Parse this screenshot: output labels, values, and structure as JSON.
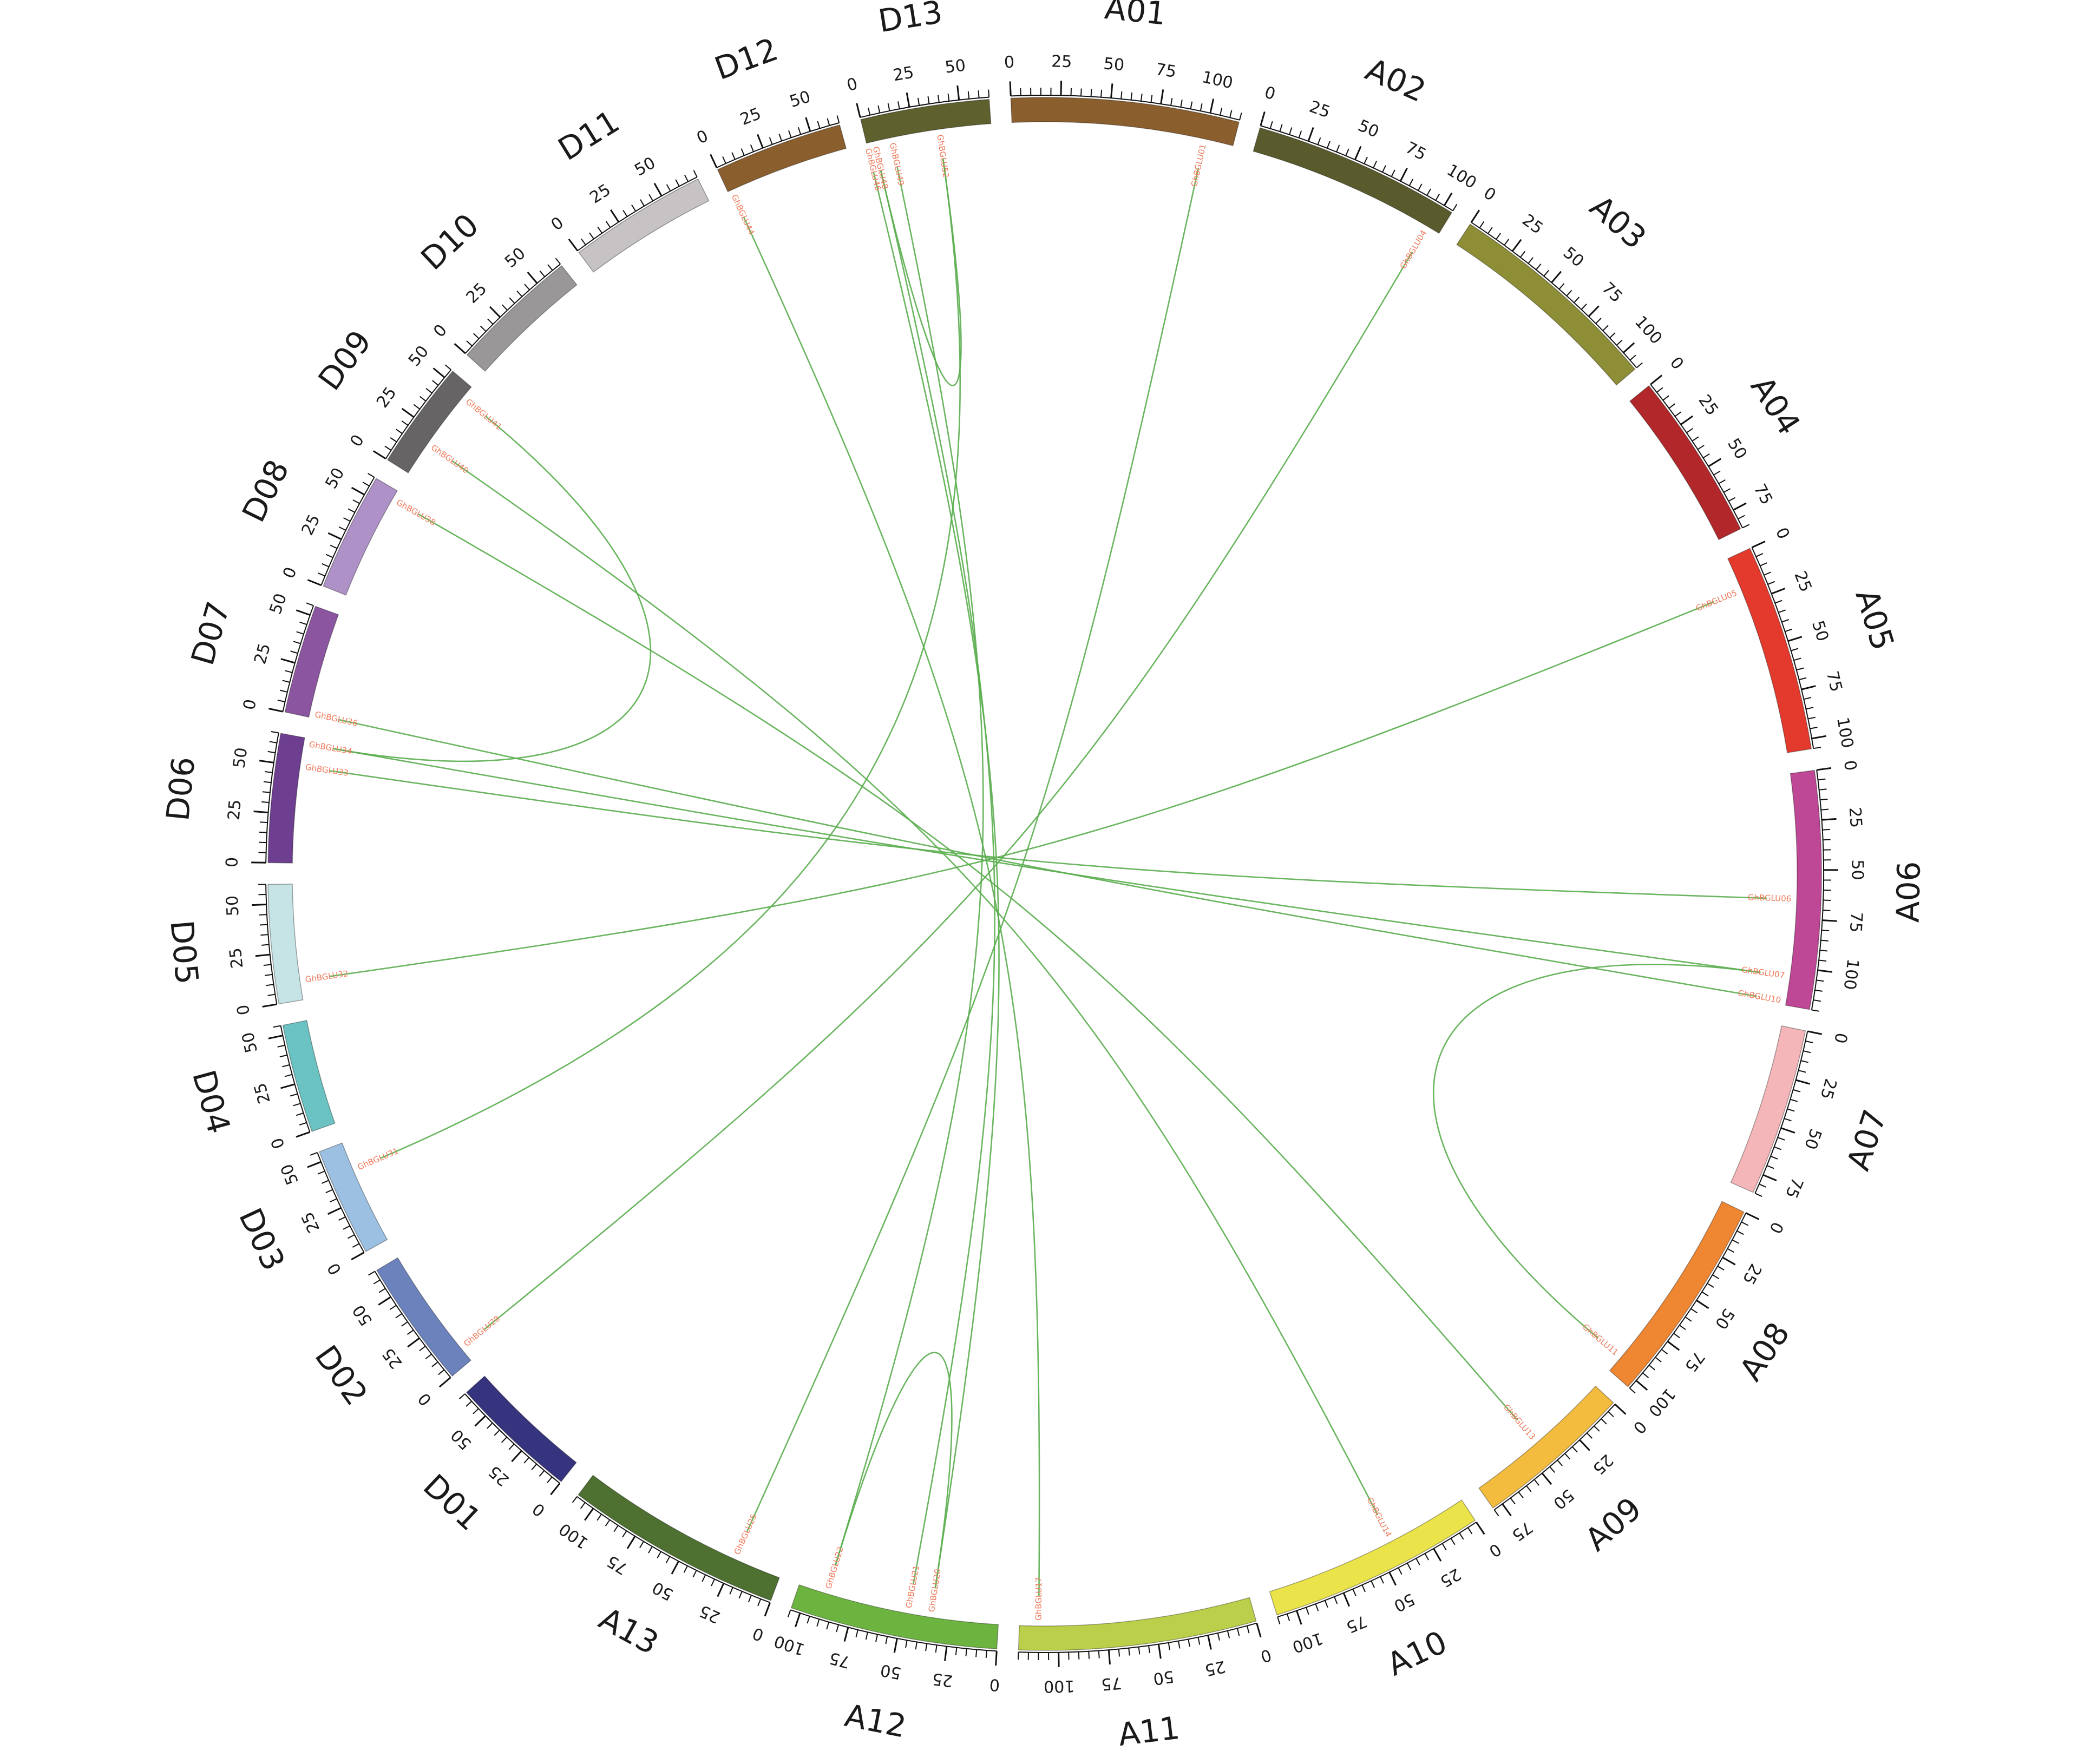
{
  "chromosomes": [
    {
      "name": "A01",
      "size": 115,
      "color": "#8b5e2e"
    },
    {
      "name": "A02",
      "size": 105,
      "color": "#5a5b2c"
    },
    {
      "name": "A03",
      "size": 110,
      "color": "#8e8e36"
    },
    {
      "name": "A04",
      "size": 85,
      "color": "#b2282a"
    },
    {
      "name": "A05",
      "size": 105,
      "color": "#e33a2d"
    },
    {
      "name": "A06",
      "size": 120,
      "color": "#be4896"
    },
    {
      "name": "A07",
      "size": 85,
      "color": "#f5b6b9"
    },
    {
      "name": "A08",
      "size": 105,
      "color": "#ee8632"
    },
    {
      "name": "A09",
      "size": 80,
      "color": "#f3bc3f"
    },
    {
      "name": "A10",
      "size": 110,
      "color": "#ebe34a"
    },
    {
      "name": "A11",
      "size": 120,
      "color": "#bccf4a"
    },
    {
      "name": "A12",
      "size": 105,
      "color": "#6cb43f"
    },
    {
      "name": "A13",
      "size": 110,
      "color": "#4e7030"
    },
    {
      "name": "D01",
      "size": 65,
      "color": "#36337f"
    },
    {
      "name": "D02",
      "size": 65,
      "color": "#6b82bd"
    },
    {
      "name": "D03",
      "size": 55,
      "color": "#9cc0e2"
    },
    {
      "name": "D04",
      "size": 55,
      "color": "#6bc2c2"
    },
    {
      "name": "D05",
      "size": 60,
      "color": "#c6e3e6"
    },
    {
      "name": "D06",
      "size": 65,
      "color": "#6e3f91"
    },
    {
      "name": "D07",
      "size": 55,
      "color": "#8c55a0"
    },
    {
      "name": "D08",
      "size": 60,
      "color": "#ae91c6"
    },
    {
      "name": "D09",
      "size": 55,
      "color": "#676466"
    },
    {
      "name": "D10",
      "size": 65,
      "color": "#9a9799"
    },
    {
      "name": "D11",
      "size": 70,
      "color": "#c7c2c4"
    },
    {
      "name": "D12",
      "size": 65,
      "color": "#8b5e2e"
    },
    {
      "name": "D13",
      "size": 65,
      "color": "#5e612e"
    }
  ],
  "genes": [
    {
      "id": "g01",
      "label": "GhBGLU01",
      "chr": "A01",
      "pos": 100
    },
    {
      "id": "g04",
      "label": "GhBGLU04",
      "chr": "A02",
      "pos": 98
    },
    {
      "id": "g05",
      "label": "GhBGLU05",
      "chr": "A05",
      "pos": 18
    },
    {
      "id": "g06",
      "label": "GhBGLU06",
      "chr": "A06",
      "pos": 65
    },
    {
      "id": "g07",
      "label": "GhBGLU07",
      "chr": "A06",
      "pos": 105
    },
    {
      "id": "g10",
      "label": "GhBGLU10",
      "chr": "A06",
      "pos": 118
    },
    {
      "id": "g11",
      "label": "GhBGLU11",
      "chr": "A08",
      "pos": 96
    },
    {
      "id": "g13",
      "label": "GhBGLU13",
      "chr": "A09",
      "pos": 42
    },
    {
      "id": "g14",
      "label": "GhBGLU14",
      "chr": "A10",
      "pos": 42
    },
    {
      "id": "g17",
      "label": "GhBGLU17",
      "chr": "A11",
      "pos": 110
    },
    {
      "id": "g20",
      "label": "GhBGLU20",
      "chr": "A12",
      "pos": 35
    },
    {
      "id": "g21",
      "label": "GhBGLU21",
      "chr": "A12",
      "pos": 47
    },
    {
      "id": "g22",
      "label": "GhBGLU22",
      "chr": "A12",
      "pos": 90
    },
    {
      "id": "g25",
      "label": "GhBGLU25",
      "chr": "A13",
      "pos": 25
    },
    {
      "id": "g28",
      "label": "GhBGLU28",
      "chr": "D02",
      "pos": 8
    },
    {
      "id": "g31",
      "label": "GhBGLU31",
      "chr": "D03",
      "pos": 40
    },
    {
      "id": "g32",
      "label": "GhBGLU32",
      "chr": "D05",
      "pos": 10
    },
    {
      "id": "g33",
      "label": "GhBGLU33",
      "chr": "D06",
      "pos": 50
    },
    {
      "id": "g34",
      "label": "GhBGLU34",
      "chr": "D06",
      "pos": 62
    },
    {
      "id": "g36",
      "label": "GhBGLU36",
      "chr": "D07",
      "pos": 2
    },
    {
      "id": "g38",
      "label": "GhBGLU38",
      "chr": "D08",
      "pos": 55
    },
    {
      "id": "g40",
      "label": "GhBGLU40",
      "chr": "D09",
      "pos": 18
    },
    {
      "id": "g41",
      "label": "GhBGLU41",
      "chr": "D09",
      "pos": 48
    },
    {
      "id": "g44",
      "label": "GhBGLU44",
      "chr": "D12",
      "pos": 2
    },
    {
      "id": "g46",
      "label": "GhBGLU46",
      "chr": "D13",
      "pos": 0
    },
    {
      "id": "g48",
      "label": "GhBGLU48",
      "chr": "D13",
      "pos": 4
    },
    {
      "id": "g49",
      "label": "GhBGLU49",
      "chr": "D13",
      "pos": 13
    },
    {
      "id": "g52",
      "label": "GhBGLU52",
      "chr": "D13",
      "pos": 38
    }
  ],
  "links": [
    [
      "g01",
      "g25"
    ],
    [
      "g04",
      "g28"
    ],
    [
      "g05",
      "g32"
    ],
    [
      "g06",
      "g33"
    ],
    [
      "g07",
      "g34"
    ],
    [
      "g07",
      "g11"
    ],
    [
      "g10",
      "g36"
    ],
    [
      "g13",
      "g38"
    ],
    [
      "g14",
      "g40"
    ],
    [
      "g41",
      "g34"
    ],
    [
      "g44",
      "g17"
    ],
    [
      "g46",
      "g20"
    ],
    [
      "g48",
      "g21"
    ],
    [
      "g49",
      "g22"
    ],
    [
      "g52",
      "g31"
    ],
    [
      "g52",
      "g48"
    ],
    [
      "g20",
      "g22"
    ]
  ]
}
